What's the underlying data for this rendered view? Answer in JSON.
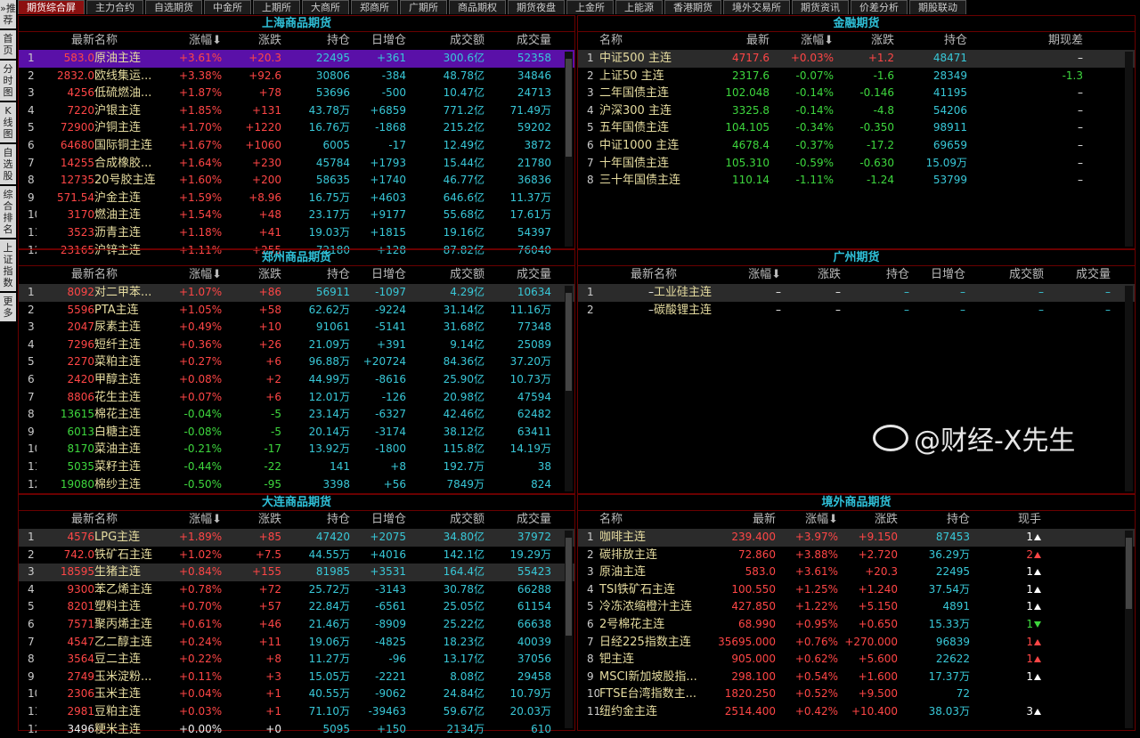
{
  "colors": {
    "up": "#ff4646",
    "down": "#3ed83e",
    "cyan": "#38c8d8",
    "name": "#e6dca0",
    "active_tab": "#8c1010",
    "border": "#6a0000"
  },
  "tabs": [
    "期货综合屏",
    "主力合约",
    "自选期货",
    "中金所",
    "上期所",
    "大商所",
    "郑商所",
    "广期所",
    "商品期权",
    "期货夜盘",
    "上金所",
    "上能源",
    "香港期货",
    "境外交易所",
    "期货资讯",
    "价差分析",
    "期股联动"
  ],
  "sidebar": [
    "»推荐",
    "首页",
    "分时图",
    "K线图",
    "自选股",
    "综合排名",
    "上证指数",
    "更多"
  ],
  "domestic_headers": [
    "",
    "最新",
    "名称",
    "涨幅⬇",
    "涨跌",
    "持仓",
    "日增仓",
    "成交额",
    "成交量"
  ],
  "shanghai": {
    "title": "上海商品期货",
    "rows": [
      [
        "1",
        "583.0",
        "原油主连",
        "+3.61%",
        "+20.3",
        "22495",
        "+361",
        "300.6亿",
        "52358"
      ],
      [
        "2",
        "2832.0",
        "欧线集运...",
        "+3.38%",
        "+92.6",
        "30806",
        "-384",
        "48.78亿",
        "34846"
      ],
      [
        "3",
        "4256",
        "低硫燃油...",
        "+1.87%",
        "+78",
        "53696",
        "-500",
        "10.47亿",
        "24713"
      ],
      [
        "4",
        "7220",
        "沪银主连",
        "+1.85%",
        "+131",
        "43.78万",
        "+6859",
        "771.2亿",
        "71.49万"
      ],
      [
        "5",
        "72900",
        "沪铜主连",
        "+1.70%",
        "+1220",
        "16.76万",
        "-1868",
        "215.2亿",
        "59202"
      ],
      [
        "6",
        "64680",
        "国际铜主连",
        "+1.67%",
        "+1060",
        "6005",
        "-17",
        "12.49亿",
        "3872"
      ],
      [
        "7",
        "14255",
        "合成橡胶...",
        "+1.64%",
        "+230",
        "45784",
        "+1793",
        "15.44亿",
        "21780"
      ],
      [
        "8",
        "12735",
        "20号胶主连",
        "+1.60%",
        "+200",
        "58635",
        "+1740",
        "46.77亿",
        "36836"
      ],
      [
        "9",
        "571.54",
        "沪金主连",
        "+1.59%",
        "+8.96",
        "16.75万",
        "+4603",
        "646.6亿",
        "11.37万"
      ],
      [
        "10",
        "3170",
        "燃油主连",
        "+1.54%",
        "+48",
        "23.17万",
        "+9177",
        "55.68亿",
        "17.61万"
      ],
      [
        "11",
        "3523",
        "沥青主连",
        "+1.18%",
        "+41",
        "19.03万",
        "+1815",
        "19.16亿",
        "54397"
      ],
      [
        "12",
        "23165",
        "沪锌主连",
        "+1.11%",
        "+255",
        "72180",
        "+128",
        "87.82亿",
        "76040"
      ]
    ]
  },
  "zhengzhou": {
    "title": "郑州商品期货",
    "rows": [
      [
        "1",
        "8092",
        "对二甲苯...",
        "+1.07%",
        "+86",
        "56911",
        "-1097",
        "4.29亿",
        "10634"
      ],
      [
        "2",
        "5596",
        "PTA主连",
        "+1.05%",
        "+58",
        "62.62万",
        "-9224",
        "31.14亿",
        "11.16万"
      ],
      [
        "3",
        "2047",
        "尿素主连",
        "+0.49%",
        "+10",
        "91061",
        "-5141",
        "31.68亿",
        "77348"
      ],
      [
        "4",
        "7296",
        "短纤主连",
        "+0.36%",
        "+26",
        "21.09万",
        "+391",
        "9.14亿",
        "25089"
      ],
      [
        "5",
        "2270",
        "菜粕主连",
        "+0.27%",
        "+6",
        "96.88万",
        "+20724",
        "84.36亿",
        "37.20万"
      ],
      [
        "6",
        "2420",
        "甲醇主连",
        "+0.08%",
        "+2",
        "44.99万",
        "-8616",
        "25.90亿",
        "10.73万"
      ],
      [
        "7",
        "8806",
        "花生主连",
        "+0.07%",
        "+6",
        "12.01万",
        "-126",
        "20.98亿",
        "47594"
      ],
      [
        "8",
        "13615",
        "棉花主连",
        "-0.04%",
        "-5",
        "23.14万",
        "-6327",
        "42.46亿",
        "62482"
      ],
      [
        "9",
        "6013",
        "白糖主连",
        "-0.08%",
        "-5",
        "20.14万",
        "-3174",
        "38.12亿",
        "63411"
      ],
      [
        "10",
        "8170",
        "菜油主连",
        "-0.21%",
        "-17",
        "13.92万",
        "-1800",
        "115.8亿",
        "14.19万"
      ],
      [
        "11",
        "5035",
        "菜籽主连",
        "-0.44%",
        "-22",
        "141",
        "+8",
        "192.7万",
        "38"
      ],
      [
        "12",
        "19080",
        "棉纱主连",
        "-0.50%",
        "-95",
        "3398",
        "+56",
        "7849万",
        "824"
      ]
    ]
  },
  "dalian": {
    "title": "大连商品期货",
    "rows": [
      [
        "1",
        "4576",
        "LPG主连",
        "+1.89%",
        "+85",
        "47420",
        "+2075",
        "34.80亿",
        "37972"
      ],
      [
        "2",
        "742.0",
        "铁矿石主连",
        "+1.02%",
        "+7.5",
        "44.55万",
        "+4016",
        "142.1亿",
        "19.29万"
      ],
      [
        "3",
        "18595",
        "生猪主连",
        "+0.84%",
        "+155",
        "81985",
        "+3531",
        "164.4亿",
        "55423"
      ],
      [
        "4",
        "9300",
        "苯乙烯主连",
        "+0.78%",
        "+72",
        "25.72万",
        "-3143",
        "30.78亿",
        "66288"
      ],
      [
        "5",
        "8201",
        "塑料主连",
        "+0.70%",
        "+57",
        "22.84万",
        "-6561",
        "25.05亿",
        "61154"
      ],
      [
        "6",
        "7571",
        "聚丙烯主连",
        "+0.61%",
        "+46",
        "21.46万",
        "-8909",
        "25.22亿",
        "66638"
      ],
      [
        "7",
        "4547",
        "乙二醇主连",
        "+0.24%",
        "+11",
        "19.06万",
        "-4825",
        "18.23亿",
        "40039"
      ],
      [
        "8",
        "3564",
        "豆二主连",
        "+0.22%",
        "+8",
        "11.27万",
        "-96",
        "13.17亿",
        "37056"
      ],
      [
        "9",
        "2749",
        "玉米淀粉...",
        "+0.11%",
        "+3",
        "15.05万",
        "-2221",
        "8.08亿",
        "29458"
      ],
      [
        "10",
        "2306",
        "玉米主连",
        "+0.04%",
        "+1",
        "40.55万",
        "-9062",
        "24.84亿",
        "10.79万"
      ],
      [
        "11",
        "2981",
        "豆粕主连",
        "+0.03%",
        "+1",
        "71.10万",
        "-39463",
        "59.67亿",
        "20.03万"
      ],
      [
        "12",
        "3496",
        "粳米主连",
        "+0.00%",
        "+0",
        "5095",
        "+150",
        "2134万",
        "610"
      ]
    ]
  },
  "guangzhou": {
    "title": "广州期货",
    "rows": [
      [
        "1",
        "–",
        "工业硅主连",
        "–",
        "–",
        "–",
        "–",
        "–",
        "–"
      ],
      [
        "2",
        "–",
        "碳酸锂主连",
        "–",
        "–",
        "–",
        "–",
        "–",
        "–"
      ]
    ]
  },
  "financial": {
    "title": "金融期货",
    "headers": [
      "",
      "名称",
      "最新",
      "涨幅⬇",
      "涨跌",
      "持仓",
      "期现差"
    ],
    "rows": [
      [
        "1",
        "中证500 主连",
        "4717.6",
        "+0.03%",
        "+1.2",
        "48471",
        "–"
      ],
      [
        "2",
        "上证50 主连",
        "2317.6",
        "-0.07%",
        "-1.6",
        "28349",
        "-1.3"
      ],
      [
        "3",
        "二年国债主连",
        "102.048",
        "-0.14%",
        "-0.146",
        "41195",
        "–"
      ],
      [
        "4",
        "沪深300 主连",
        "3325.8",
        "-0.14%",
        "-4.8",
        "54206",
        "–"
      ],
      [
        "5",
        "五年国债主连",
        "104.105",
        "-0.34%",
        "-0.350",
        "98911",
        "–"
      ],
      [
        "6",
        "中证1000 主连",
        "4678.4",
        "-0.37%",
        "-17.2",
        "69659",
        "–"
      ],
      [
        "7",
        "十年国债主连",
        "105.310",
        "-0.59%",
        "-0.630",
        "15.09万",
        "–"
      ],
      [
        "8",
        "三十年国债主连",
        "110.14",
        "-1.11%",
        "-1.24",
        "53799",
        "–"
      ]
    ]
  },
  "overseas": {
    "title": "境外商品期货",
    "headers": [
      "",
      "名称",
      "最新",
      "涨幅⬇",
      "涨跌",
      "持仓",
      "现手"
    ],
    "rows": [
      [
        "1",
        "咖啡主连",
        "239.400",
        "+3.97%",
        "+9.150",
        "87453",
        "1"
      ],
      [
        "2",
        "碳排放主连",
        "72.860",
        "+3.88%",
        "+2.720",
        "36.29万",
        "2"
      ],
      [
        "3",
        "原油主连",
        "583.0",
        "+3.61%",
        "+20.3",
        "22495",
        "1"
      ],
      [
        "4",
        "TSI铁矿石主连",
        "100.550",
        "+1.25%",
        "+1.240",
        "37.54万",
        "1"
      ],
      [
        "5",
        "冷冻浓缩橙汁主连",
        "427.850",
        "+1.22%",
        "+5.150",
        "4891",
        "1"
      ],
      [
        "6",
        "2号棉花主连",
        "68.990",
        "+0.95%",
        "+0.650",
        "15.33万",
        "1"
      ],
      [
        "7",
        "日经225指数主连",
        "35695.000",
        "+0.76%",
        "+270.000",
        "96839",
        "1"
      ],
      [
        "8",
        "钯主连",
        "905.000",
        "+0.62%",
        "+5.600",
        "22622",
        "1"
      ],
      [
        "9",
        "MSCI新加坡股指...",
        "298.100",
        "+0.54%",
        "+1.600",
        "17.37万",
        "1"
      ],
      [
        "10",
        "FTSE台湾指数主...",
        "1820.250",
        "+0.52%",
        "+9.500",
        "72",
        ""
      ],
      [
        "11",
        "纽约金主连",
        "2514.400",
        "+0.42%",
        "+10.400",
        "38.03万",
        "3"
      ]
    ],
    "tick_arrows": [
      {
        "dir": "up",
        "color": "white"
      },
      {
        "dir": "up",
        "color": "red"
      },
      {
        "dir": "up",
        "color": "white"
      },
      {
        "dir": "up",
        "color": "white"
      },
      {
        "dir": "up",
        "color": "white"
      },
      {
        "dir": "down",
        "color": "green"
      },
      {
        "dir": "up",
        "color": "red"
      },
      {
        "dir": "up",
        "color": "red"
      },
      {
        "dir": "up",
        "color": "white"
      },
      null,
      {
        "dir": "up",
        "color": "white"
      }
    ]
  },
  "watermark": "@财经-X先生"
}
